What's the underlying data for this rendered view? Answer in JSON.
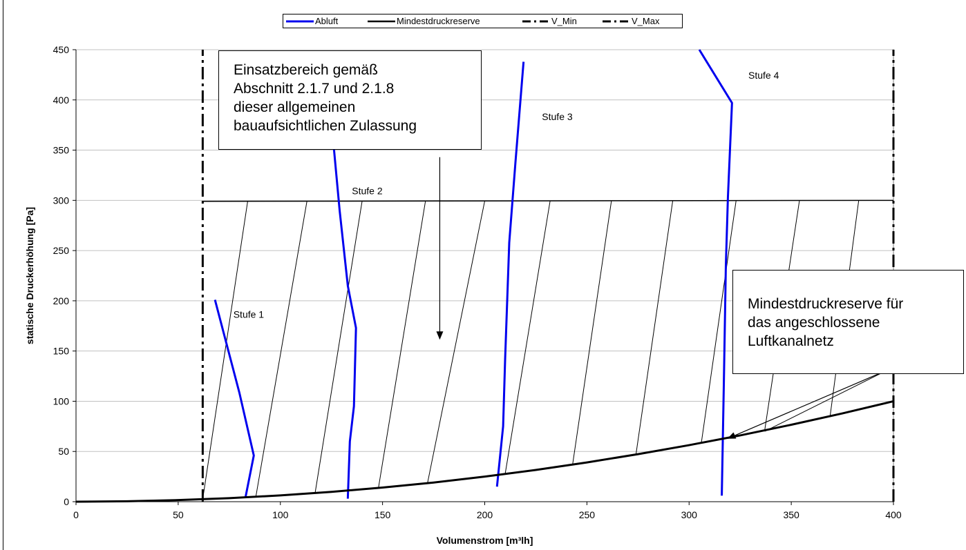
{
  "chart_data": {
    "type": "line",
    "xlabel": "Volumenstrom [m³lh]",
    "ylabel": "statische Druckerhöhung [Pa]",
    "xlim": [
      0,
      400
    ],
    "ylim": [
      0,
      450
    ],
    "x_ticks": [
      "0",
      "50",
      "100",
      "150",
      "200",
      "250",
      "300",
      "350",
      "400"
    ],
    "y_ticks": [
      "0",
      "50",
      "100",
      "150",
      "200",
      "250",
      "300",
      "350",
      "400",
      "450"
    ],
    "grid": "horizontal",
    "legend_position": "top-center",
    "legend": [
      "Abluft",
      "Mindestdruckreserve",
      "V_Min",
      "V_Max"
    ],
    "colors": {
      "abluft": "#0000ee",
      "black": "#000000",
      "grid": "#c0c0c0"
    },
    "series": [
      {
        "name": "Abluft",
        "segments": [
          {
            "label": "Stufe 1",
            "points": [
              [
                68,
                201
              ],
              [
                80,
                108
              ],
              [
                87,
                46
              ],
              [
                83,
                5
              ]
            ]
          },
          {
            "label": "Stufe 2",
            "points": [
              [
                124,
                400
              ],
              [
                129,
                290
              ],
              [
                133,
                215
              ],
              [
                137,
                173
              ],
              [
                136,
                95
              ],
              [
                134,
                60
              ],
              [
                133,
                3
              ]
            ]
          },
          {
            "label": "Stufe 3",
            "points": [
              [
                219,
                438
              ],
              [
                215,
                337
              ],
              [
                212,
                258
              ],
              [
                210,
                143
              ],
              [
                209,
                75
              ],
              [
                206,
                15
              ]
            ]
          },
          {
            "label": "Stufe 4",
            "points": [
              [
                305,
                450
              ],
              [
                321,
                397
              ],
              [
                319,
                303
              ],
              [
                318,
                236
              ],
              [
                317,
                117
              ],
              [
                316,
                6
              ]
            ]
          }
        ]
      },
      {
        "name": "Mindestdruckreserve",
        "points": [
          [
            0,
            0
          ],
          [
            25,
            0.4
          ],
          [
            50,
            1.6
          ],
          [
            75,
            3.5
          ],
          [
            100,
            6.3
          ],
          [
            125,
            9.8
          ],
          [
            150,
            14.1
          ],
          [
            175,
            19.1
          ],
          [
            200,
            25
          ],
          [
            225,
            31.6
          ],
          [
            250,
            39.1
          ],
          [
            275,
            47.3
          ],
          [
            300,
            56.3
          ],
          [
            325,
            66
          ],
          [
            350,
            76.6
          ],
          [
            375,
            87.9
          ],
          [
            400,
            100
          ]
        ]
      },
      {
        "name": "V_Min",
        "points": [
          [
            62,
            0
          ],
          [
            62,
            450
          ]
        ]
      },
      {
        "name": "V_Max",
        "points": [
          [
            400,
            0
          ],
          [
            400,
            450
          ]
        ]
      }
    ],
    "upper_limit": [
      [
        62,
        299
      ],
      [
        400,
        300
      ]
    ],
    "region_lines": {
      "bottom_x": [
        62,
        88,
        117,
        148,
        172,
        210,
        243,
        274,
        306,
        337,
        369
      ],
      "top_x": [
        84,
        113,
        140,
        171,
        200,
        232,
        262,
        292,
        323,
        354,
        383
      ]
    },
    "stage_labels": [
      {
        "text": "Stufe 1",
        "x": 77,
        "y": 183
      },
      {
        "text": "Stufe 2",
        "x": 135,
        "y": 306
      },
      {
        "text": "Stufe 3",
        "x": 228,
        "y": 380
      },
      {
        "text": "Stufe 4",
        "x": 329,
        "y": 421
      }
    ],
    "annotations": [
      {
        "text": "Einsatzbereich gemäß\nAbschnitt 2.1.7 und 2.1.8\ndieser allgemeinen\nbauaufsichtlichen Zulassung",
        "arrow_from": [
          178,
          343
        ],
        "arrow_to": [
          178,
          162
        ]
      },
      {
        "text": "Mindestdruckreserve für\ndas angeschlossene\nLuftkanalnetz",
        "arrow_from": [
          397,
          131
        ],
        "arrow_to": [
          319,
          63
        ]
      }
    ]
  }
}
